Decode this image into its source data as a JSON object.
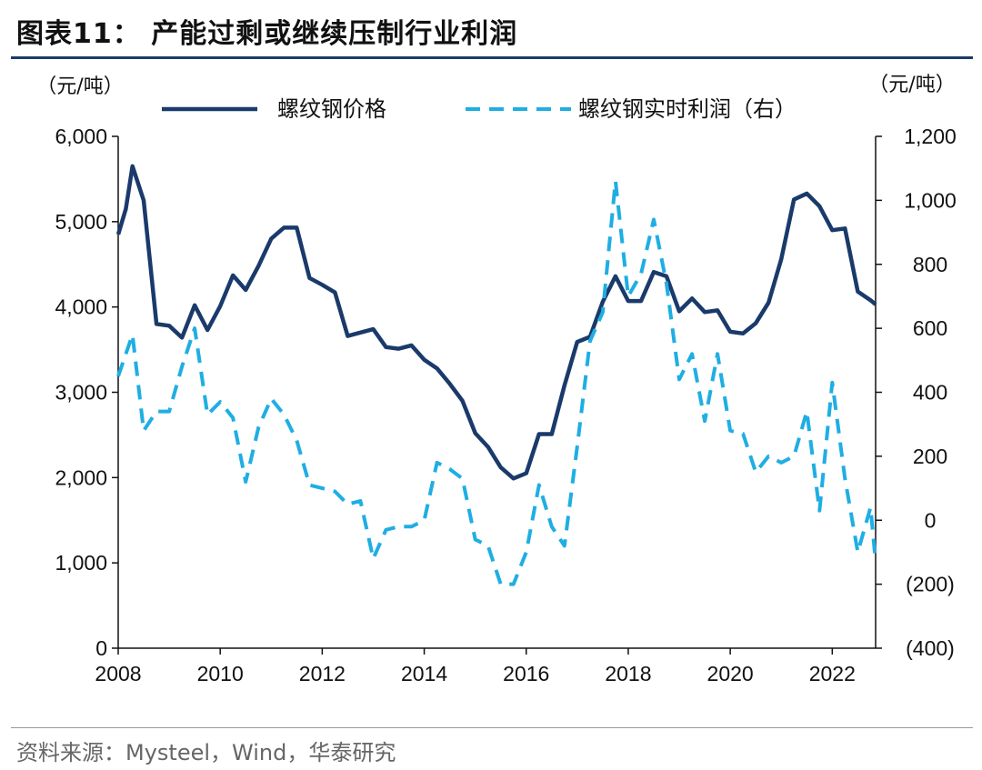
{
  "title": "图表11：  产能过剩或继续压制行业利润",
  "source": "资料来源：Mysteel，Wind，华泰研究",
  "chart_data": {
    "type": "line",
    "left_unit": "（元/吨）",
    "right_unit": "（元/吨）",
    "left_axis": {
      "range": [
        0,
        6000
      ],
      "ticks": [
        0,
        1000,
        2000,
        3000,
        4000,
        5000,
        6000
      ],
      "tick_labels": [
        "0",
        "1,000",
        "2,000",
        "3,000",
        "4,000",
        "5,000",
        "6,000"
      ]
    },
    "right_axis": {
      "range": [
        -400,
        1200
      ],
      "ticks": [
        -400,
        -200,
        0,
        200,
        400,
        600,
        800,
        1000,
        1200
      ],
      "tick_labels": [
        "(400)",
        "(200)",
        "0",
        "200",
        "400",
        "600",
        "800",
        "1,000",
        "1,200"
      ]
    },
    "x_axis": {
      "range": [
        2008,
        2022.85
      ],
      "ticks": [
        2008,
        2010,
        2012,
        2014,
        2016,
        2018,
        2020,
        2022
      ],
      "tick_labels": [
        "2008",
        "2010",
        "2012",
        "2014",
        "2016",
        "2018",
        "2020",
        "2022"
      ]
    },
    "series": [
      {
        "name": "螺纹钢价格",
        "axis": "left",
        "color": "#1a3a6b",
        "style": "solid",
        "x": [
          2008.0,
          2008.15,
          2008.28,
          2008.5,
          2008.75,
          2009.0,
          2009.25,
          2009.5,
          2009.75,
          2010.0,
          2010.25,
          2010.5,
          2010.75,
          2011.0,
          2011.25,
          2011.5,
          2011.75,
          2012.0,
          2012.25,
          2012.5,
          2012.75,
          2013.0,
          2013.25,
          2013.5,
          2013.75,
          2014.0,
          2014.25,
          2014.5,
          2014.75,
          2015.0,
          2015.25,
          2015.5,
          2015.75,
          2016.0,
          2016.25,
          2016.5,
          2016.75,
          2017.0,
          2017.25,
          2017.5,
          2017.75,
          2018.0,
          2018.25,
          2018.5,
          2018.75,
          2019.0,
          2019.25,
          2019.5,
          2019.75,
          2020.0,
          2020.25,
          2020.5,
          2020.75,
          2021.0,
          2021.25,
          2021.5,
          2021.75,
          2022.0,
          2022.25,
          2022.5,
          2022.75,
          2022.85
        ],
        "values": [
          4850,
          5150,
          5650,
          5250,
          3800,
          3780,
          3640,
          4020,
          3730,
          4010,
          4370,
          4200,
          4480,
          4800,
          4930,
          4930,
          4340,
          4260,
          4170,
          3660,
          3700,
          3740,
          3530,
          3510,
          3550,
          3380,
          3280,
          3100,
          2900,
          2520,
          2360,
          2120,
          1990,
          2050,
          2510,
          2510,
          3080,
          3590,
          3650,
          4060,
          4360,
          4070,
          4070,
          4410,
          4360,
          3950,
          4100,
          3940,
          3960,
          3710,
          3690,
          3810,
          4050,
          4560,
          5260,
          5330,
          5180,
          4900,
          4920,
          4180,
          4080,
          4030
        ]
      },
      {
        "name": "螺纹钢实时利润（右）",
        "axis": "right",
        "color": "#1faee3",
        "style": "dashed",
        "x": [
          2008.0,
          2008.15,
          2008.28,
          2008.5,
          2008.75,
          2009.0,
          2009.25,
          2009.5,
          2009.75,
          2010.0,
          2010.25,
          2010.5,
          2010.75,
          2011.0,
          2011.25,
          2011.5,
          2011.75,
          2012.0,
          2012.25,
          2012.5,
          2012.75,
          2013.0,
          2013.25,
          2013.5,
          2013.75,
          2014.0,
          2014.25,
          2014.5,
          2014.75,
          2015.0,
          2015.25,
          2015.5,
          2015.75,
          2016.0,
          2016.25,
          2016.5,
          2016.75,
          2017.0,
          2017.25,
          2017.5,
          2017.75,
          2018.0,
          2018.25,
          2018.5,
          2018.75,
          2019.0,
          2019.25,
          2019.5,
          2019.75,
          2020.0,
          2020.25,
          2020.5,
          2020.75,
          2021.0,
          2021.25,
          2021.5,
          2021.75,
          2022.0,
          2022.25,
          2022.5,
          2022.75,
          2022.85
        ],
        "values": [
          450,
          520,
          580,
          280,
          340,
          340,
          480,
          600,
          330,
          370,
          320,
          120,
          290,
          380,
          330,
          250,
          110,
          100,
          90,
          50,
          60,
          -120,
          -30,
          -20,
          -20,
          0,
          180,
          160,
          130,
          -60,
          -80,
          -200,
          -200,
          -100,
          110,
          -20,
          -80,
          230,
          560,
          650,
          1060,
          700,
          770,
          940,
          740,
          440,
          520,
          310,
          520,
          280,
          270,
          150,
          200,
          180,
          200,
          340,
          30,
          430,
          130,
          -100,
          40,
          -130
        ]
      }
    ]
  }
}
